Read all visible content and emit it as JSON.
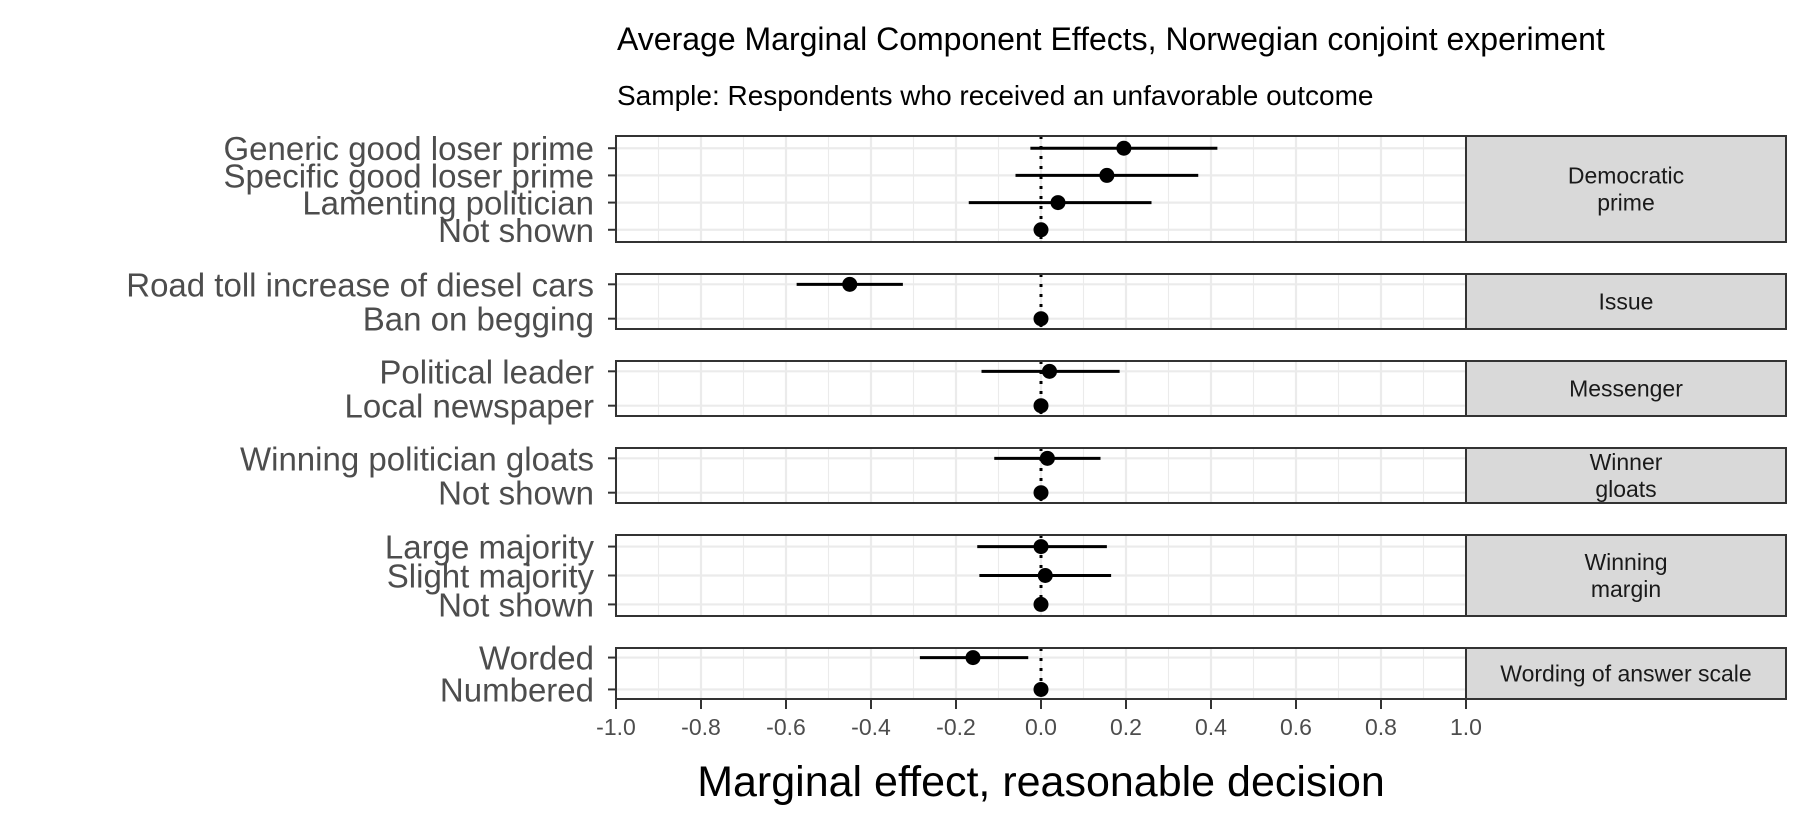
{
  "chart_data": {
    "type": "scatter",
    "subtype": "coefficient-plot-with-confidence-intervals",
    "title": "Average Marginal Component Effects, Norwegian conjoint experiment",
    "subtitle": "Sample: Respondents who received an unfavorable outcome",
    "xlabel": "Marginal effect, reasonable decision",
    "xlim": [
      -1.0,
      1.0
    ],
    "xticks": [
      "-1.0",
      "-0.8",
      "-0.6",
      "-0.4",
      "-0.2",
      "0.0",
      "0.2",
      "0.4",
      "0.6",
      "0.8",
      "1.0"
    ],
    "reference_line": 0,
    "grid": true,
    "panels": [
      {
        "strip": "Democratic\nprime",
        "items": [
          {
            "label": "Generic good loser prime",
            "estimate": 0.195,
            "lower": -0.025,
            "upper": 0.415
          },
          {
            "label": "Specific good loser prime",
            "estimate": 0.155,
            "lower": -0.06,
            "upper": 0.37
          },
          {
            "label": "Lamenting politician",
            "estimate": 0.04,
            "lower": -0.17,
            "upper": 0.26
          },
          {
            "label": "Not shown",
            "estimate": 0.0,
            "lower": 0.0,
            "upper": 0.0
          }
        ]
      },
      {
        "strip": "Issue",
        "items": [
          {
            "label": "Road toll increase of diesel cars",
            "estimate": -0.45,
            "lower": -0.575,
            "upper": -0.325
          },
          {
            "label": "Ban on begging",
            "estimate": 0.0,
            "lower": 0.0,
            "upper": 0.0
          }
        ]
      },
      {
        "strip": "Messenger",
        "items": [
          {
            "label": "Political leader",
            "estimate": 0.02,
            "lower": -0.14,
            "upper": 0.185
          },
          {
            "label": "Local newspaper",
            "estimate": 0.0,
            "lower": 0.0,
            "upper": 0.0
          }
        ]
      },
      {
        "strip": "Winner\ngloats",
        "items": [
          {
            "label": "Winning politician gloats",
            "estimate": 0.015,
            "lower": -0.11,
            "upper": 0.14
          },
          {
            "label": "Not shown",
            "estimate": 0.0,
            "lower": 0.0,
            "upper": 0.0
          }
        ]
      },
      {
        "strip": "Winning\nmargin",
        "items": [
          {
            "label": "Large majority",
            "estimate": 0.0,
            "lower": -0.15,
            "upper": 0.155
          },
          {
            "label": "Slight majority",
            "estimate": 0.01,
            "lower": -0.145,
            "upper": 0.165
          },
          {
            "label": "Not shown",
            "estimate": 0.0,
            "lower": 0.0,
            "upper": 0.0
          }
        ]
      },
      {
        "strip": "Wording of answer scale",
        "items": [
          {
            "label": "Worded",
            "estimate": -0.16,
            "lower": -0.285,
            "upper": -0.03
          },
          {
            "label": "Numbered",
            "estimate": 0.0,
            "lower": 0.0,
            "upper": 0.0
          }
        ]
      }
    ]
  },
  "colors": {
    "point": "#000000",
    "grid": "#ebebeb",
    "panel_border": "#333333",
    "strip_fill": "#d9d9d9",
    "label_text": "#4d4d4d"
  }
}
